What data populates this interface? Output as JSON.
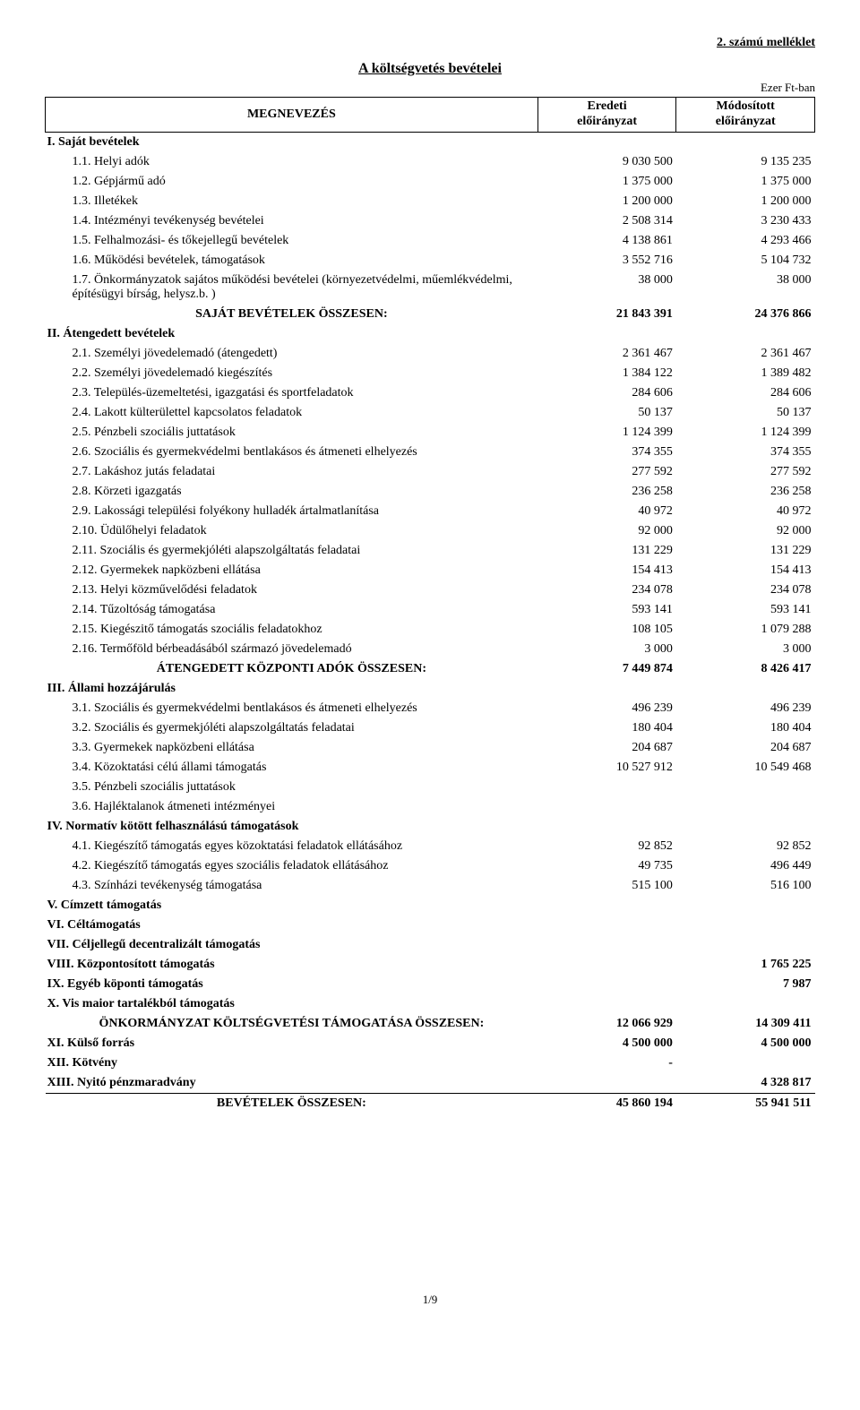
{
  "header": {
    "attachment": "2. számú melléklet",
    "title": "A költségvetés bevételei",
    "unit": "Ezer Ft-ban"
  },
  "columns": {
    "name": "MEGNEVEZÉS",
    "col1a": "Eredeti",
    "col1b": "előirányzat",
    "col2a": "Módosított",
    "col2b": "előirányzat"
  },
  "rows": [
    {
      "t": "h",
      "label": "I. Saját bevételek"
    },
    {
      "t": "r",
      "label": "1.1. Helyi adók",
      "v1": "9 030 500",
      "v2": "9 135 235"
    },
    {
      "t": "r",
      "label": "1.2. Gépjármű adó",
      "v1": "1 375 000",
      "v2": "1 375 000"
    },
    {
      "t": "r",
      "label": "1.3. Illetékek",
      "v1": "1 200 000",
      "v2": "1 200 000"
    },
    {
      "t": "r",
      "label": "1.4. Intézményi tevékenység bevételei",
      "v1": "2 508 314",
      "v2": "3 230 433"
    },
    {
      "t": "r",
      "label": "1.5. Felhalmozási- és tőkejellegű bevételek",
      "v1": "4 138 861",
      "v2": "4 293 466"
    },
    {
      "t": "r",
      "label": "1.6. Működési bevételek, támogatások",
      "v1": "3 552 716",
      "v2": "5 104 732"
    },
    {
      "t": "r",
      "label": "1.7. Önkormányzatok sajátos működési bevételei (környezetvédelmi, műemlékvédelmi, építésügyi bírság, helysz.b. )",
      "v1": "38 000",
      "v2": "38 000"
    },
    {
      "t": "s",
      "label": "SAJÁT BEVÉTELEK ÖSSZESEN:",
      "v1": "21 843 391",
      "v2": "24 376 866"
    },
    {
      "t": "h",
      "label": "II. Átengedett bevételek"
    },
    {
      "t": "r",
      "label": "2.1. Személyi jövedelemadó (átengedett)",
      "v1": "2 361 467",
      "v2": "2 361 467"
    },
    {
      "t": "r",
      "label": "2.2. Személyi jövedelemadó kiegészítés",
      "v1": "1 384 122",
      "v2": "1 389 482"
    },
    {
      "t": "r",
      "label": "2.3. Település-üzemeltetési, igazgatási és sportfeladatok",
      "v1": "284 606",
      "v2": "284 606"
    },
    {
      "t": "r",
      "label": "2.4. Lakott külterülettel kapcsolatos feladatok",
      "v1": "50 137",
      "v2": "50 137"
    },
    {
      "t": "r",
      "label": "2.5. Pénzbeli szociális juttatások",
      "v1": "1 124 399",
      "v2": "1 124 399"
    },
    {
      "t": "r",
      "label": "2.6. Szociális és gyermekvédelmi bentlakásos és átmeneti elhelyezés",
      "v1": "374 355",
      "v2": "374 355"
    },
    {
      "t": "r",
      "label": "2.7. Lakáshoz jutás feladatai",
      "v1": "277 592",
      "v2": "277 592"
    },
    {
      "t": "r",
      "label": "2.8. Körzeti igazgatás",
      "v1": "236 258",
      "v2": "236 258"
    },
    {
      "t": "r",
      "label": "2.9. Lakossági települési folyékony hulladék ártalmatlanítása",
      "v1": "40 972",
      "v2": "40 972"
    },
    {
      "t": "r",
      "label": "2.10. Üdülőhelyi feladatok",
      "v1": "92 000",
      "v2": "92 000"
    },
    {
      "t": "r",
      "label": "2.11. Szociális és gyermekjóléti alapszolgáltatás feladatai",
      "v1": "131 229",
      "v2": "131 229"
    },
    {
      "t": "r",
      "label": "2.12. Gyermekek napközbeni ellátása",
      "v1": "154 413",
      "v2": "154 413"
    },
    {
      "t": "r",
      "label": "2.13. Helyi  közművelődési  feladatok",
      "v1": "234 078",
      "v2": "234 078"
    },
    {
      "t": "r",
      "label": "2.14. Tűzoltóság  támogatása",
      "v1": "593 141",
      "v2": "593 141"
    },
    {
      "t": "r",
      "label": "2.15. Kiegészitő támogatás szociális feladatokhoz",
      "v1": "108 105",
      "v2": "1 079 288"
    },
    {
      "t": "r",
      "label": "2.16. Termőföld bérbeadásából származó jövedelemadó",
      "v1": "3 000",
      "v2": "3 000"
    },
    {
      "t": "s",
      "label": "ÁTENGEDETT KÖZPONTI ADÓK ÖSSZESEN:",
      "v1": "7 449 874",
      "v2": "8 426 417"
    },
    {
      "t": "h",
      "label": "III. Állami hozzájárulás"
    },
    {
      "t": "r",
      "label": "3.1. Szociális és gyermekvédelmi bentlakásos és átmeneti elhelyezés",
      "v1": "496 239",
      "v2": "496 239"
    },
    {
      "t": "r",
      "label": "3.2. Szociális és gyermekjóléti alapszolgáltatás feladatai",
      "v1": "180 404",
      "v2": "180 404"
    },
    {
      "t": "r",
      "label": "3.3. Gyermekek napközbeni ellátása",
      "v1": "204 687",
      "v2": "204 687"
    },
    {
      "t": "r",
      "label": "3.4. Közoktatási célú állami támogatás",
      "v1": "10 527 912",
      "v2": "10 549 468"
    },
    {
      "t": "r",
      "label": "3.5. Pénzbeli szociális juttatások",
      "v1": "",
      "v2": ""
    },
    {
      "t": "r",
      "label": "3.6. Hajléktalanok átmeneti intézményei",
      "v1": "",
      "v2": ""
    },
    {
      "t": "h",
      "label": "IV. Normatív kötött felhasználású támogatások"
    },
    {
      "t": "r",
      "label": "4.1. Kiegészítő támogatás egyes közoktatási feladatok ellátásához",
      "v1": "92 852",
      "v2": "92 852"
    },
    {
      "t": "r",
      "label": "4.2. Kiegészítő támogatás egyes szociális feladatok ellátásához",
      "v1": "49 735",
      "v2": "496 449"
    },
    {
      "t": "r",
      "label": "4.3. Színházi tevékenység támogatása",
      "v1": "515 100",
      "v2": "516 100"
    },
    {
      "t": "h",
      "label": "V. Címzett támogatás"
    },
    {
      "t": "h",
      "label": "VI. Céltámogatás"
    },
    {
      "t": "h",
      "label": "VII. Céljellegű decentralizált támogatás"
    },
    {
      "t": "h",
      "label": "VIII.  Központosított támogatás",
      "v1": "",
      "v2": "1 765 225"
    },
    {
      "t": "h",
      "label": "IX.  Egyéb köponti támogatás",
      "v1": "",
      "v2": "7 987"
    },
    {
      "t": "h",
      "label": "X. Vis maior tartalékból támogatás"
    },
    {
      "t": "s",
      "label": "ÖNKORMÁNYZAT KÖLTSÉGVETÉSI TÁMOGATÁSA ÖSSZESEN:",
      "v1": "12 066 929",
      "v2": "14 309 411"
    },
    {
      "t": "h",
      "label": "XI. Külső forrás",
      "v1": "4 500 000",
      "v2": "4 500 000"
    },
    {
      "t": "h",
      "label": "XII. Kötvény",
      "v1": "-",
      "v2": ""
    },
    {
      "t": "h",
      "label": "XIII. Nyitó pénzmaradvány",
      "v1": "",
      "v2": "4 328 817"
    },
    {
      "t": "g",
      "label": "BEVÉTELEK ÖSSZESEN:",
      "v1": "45 860 194",
      "v2": "55 941 511"
    }
  ],
  "footer": "1/9"
}
